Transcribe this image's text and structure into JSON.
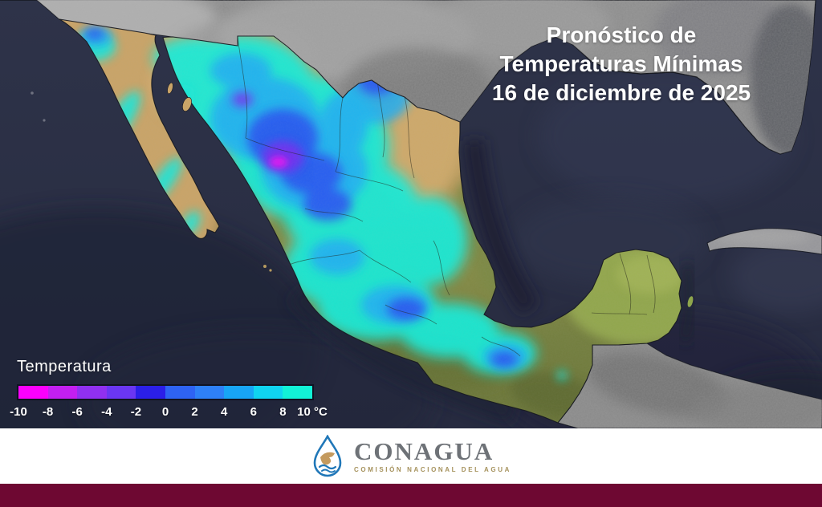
{
  "title": {
    "line1": "Pronóstico de",
    "line2": "Temperaturas Mínimas",
    "line3": "16 de diciembre de 2025"
  },
  "legend": {
    "title": "Temperatura",
    "unit": "°C",
    "ticks": [
      "-10",
      "-8",
      "-6",
      "-4",
      "-2",
      "0",
      "2",
      "4",
      "6",
      "8",
      "10 °C"
    ],
    "colors": [
      "#fb00fd",
      "#c31ff0",
      "#9030f0",
      "#6a36f2",
      "#2b1fe8",
      "#2e63f3",
      "#2e80f6",
      "#18a5f5",
      "#10d4f0",
      "#12f2d7"
    ]
  },
  "footer": {
    "org": "CONAGUA",
    "subtitle": "COMISIÓN NACIONAL DEL AGUA"
  },
  "colors": {
    "ocean": "#2B3046",
    "us_land_gray": "#8E8E8E",
    "mexico_desert_tan": "#C9A468",
    "mexico_highland_olive": "#74803F",
    "yucatan_green": "#94A94F",
    "footer_bg": "#FFFFFF",
    "accent_bar": "#6E0832",
    "title_text": "#FFFFFF",
    "logo_blue": "#2077B8",
    "logo_tan": "#C49A5E"
  }
}
